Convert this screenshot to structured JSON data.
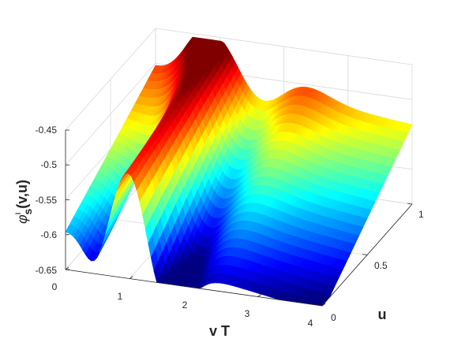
{
  "chart_data": {
    "type": "surface",
    "colormap": "jet",
    "grid": true,
    "xlabel": "v T",
    "ylabel": "u",
    "zlabel_main": "φ",
    "zlabel_sup": "ι",
    "zlabel_sub": "s",
    "zlabel_args": "(v,u)",
    "xlim": [
      0,
      4
    ],
    "ylim": [
      0,
      1
    ],
    "zlim": [
      -0.65,
      -0.45
    ],
    "x_ticks": [
      "0",
      "1",
      "2",
      "3",
      "4"
    ],
    "y_ticks": [
      "0",
      "0.5",
      "1"
    ],
    "z_ticks": [
      "-0.45",
      "-0.5",
      "-0.55",
      "-0.6",
      "-0.65"
    ],
    "sample_profile_at_u0": {
      "x": [
        0,
        0.25,
        0.45,
        0.7,
        1.0,
        1.3,
        1.6,
        2.0,
        2.5,
        3.0,
        3.5,
        4.0
      ],
      "z": [
        -0.595,
        -0.615,
        -0.635,
        -0.57,
        -0.495,
        -0.555,
        -0.625,
        -0.615,
        -0.617,
        -0.621,
        -0.624,
        -0.625
      ]
    },
    "sample_profile_at_u1": {
      "x": [
        0,
        0.25,
        0.5,
        1.0,
        1.5,
        2.0,
        2.5,
        3.0,
        3.5,
        4.0
      ],
      "z": [
        -0.515,
        -0.49,
        -0.462,
        -0.492,
        -0.503,
        -0.497,
        -0.499,
        -0.505,
        -0.508,
        -0.51
      ]
    }
  }
}
